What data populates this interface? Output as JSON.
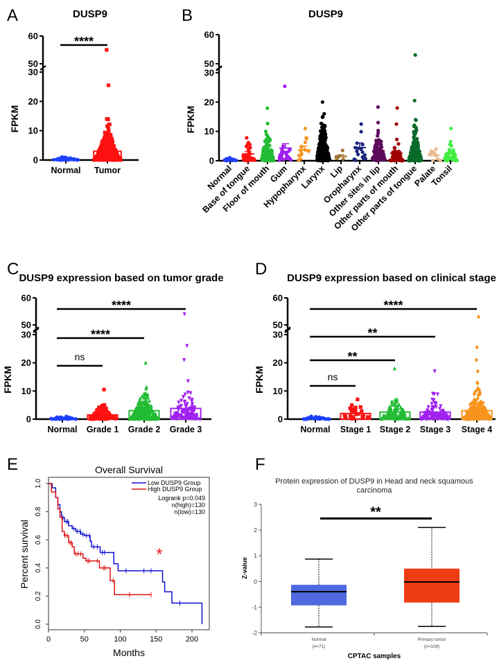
{
  "figure": {
    "panel_labels": [
      "A",
      "B",
      "C",
      "D",
      "E",
      "F"
    ]
  },
  "chart_data": [
    {
      "type": "scatter",
      "title": "DUSP9",
      "ylabel": "FPKM",
      "yticks": [
        0,
        10,
        20,
        30,
        50,
        60
      ],
      "axis_break": [
        30,
        50
      ],
      "categories": [
        "Normal",
        "Tumor"
      ],
      "groups": [
        {
          "color": "#1f3fff",
          "marker": "circle",
          "mean": 0.4,
          "max": 1.0,
          "outliers": []
        },
        {
          "color": "#ff1010",
          "marker": "square",
          "mean": 3.0,
          "max": 14,
          "outliers": [
            25.5,
            55
          ]
        }
      ],
      "significance": [
        {
          "from": 0,
          "to": 1,
          "label": "****"
        }
      ]
    },
    {
      "type": "scatter",
      "title": "DUSP9",
      "ylabel": "FPKM",
      "yticks": [
        0,
        10,
        20,
        30,
        50,
        60
      ],
      "axis_break": [
        30,
        50
      ],
      "categories": [
        "Normal",
        "Base of tongue",
        "Floor of mouth",
        "Gum",
        "Hypopharynx",
        "Larynx",
        "Lip",
        "Oropharynx",
        "Other sites in lip",
        "Other parts of mouth",
        "Other parts of tongue",
        "Palate",
        "Tonsil"
      ],
      "groups": [
        {
          "color": "#1f3fff",
          "marker": "circle",
          "mean": 0.5,
          "max": 1.0,
          "outliers": []
        },
        {
          "color": "#ff1010",
          "marker": "circle",
          "mean": 2.3,
          "max": 7.8,
          "outliers": []
        },
        {
          "color": "#22bb33",
          "marker": "circle",
          "mean": 3.5,
          "max": 10,
          "outliers": [
            12.7,
            17.9
          ]
        },
        {
          "color": "#a020f0",
          "marker": "circle",
          "mean": 4.3,
          "max": 5,
          "outliers": [
            25.4
          ]
        },
        {
          "color": "#f7941d",
          "marker": "circle",
          "mean": 3.7,
          "max": 7.8,
          "outliers": [
            11
          ]
        },
        {
          "color": "#000000",
          "marker": "circle",
          "mean": 4.5,
          "max": 20,
          "outliers": []
        },
        {
          "color": "#a07030",
          "marker": "circle",
          "mean": 1.5,
          "max": 3.5,
          "outliers": []
        },
        {
          "color": "#1a237e",
          "marker": "circle",
          "mean": 4.5,
          "max": 6,
          "outliers": [
            9.9,
            12.5
          ]
        },
        {
          "color": "#5b0a5b",
          "marker": "circle",
          "mean": 3.4,
          "max": 13,
          "outliers": [
            18.3
          ]
        },
        {
          "color": "#a00000",
          "marker": "circle",
          "mean": 2.5,
          "max": 12.5,
          "outliers": [
            18
          ]
        },
        {
          "color": "#0a6a2a",
          "marker": "circle",
          "mean": 3.0,
          "max": 14,
          "outliers": [
            20.5,
            53
          ]
        },
        {
          "color": "#e8b890",
          "marker": "circle",
          "mean": 1.8,
          "max": 4,
          "outliers": []
        },
        {
          "color": "#44ee44",
          "marker": "circle",
          "mean": 2.2,
          "max": 11,
          "outliers": []
        }
      ]
    },
    {
      "type": "scatter",
      "title": "DUSP9 expression based on tumor grade",
      "ylabel": "FPKM",
      "yticks": [
        0,
        10,
        20,
        30,
        50,
        60
      ],
      "axis_break": [
        30,
        50
      ],
      "categories": [
        "Normal",
        "Grade 1",
        "Grade 2",
        "Grade 3"
      ],
      "groups": [
        {
          "color": "#1f3fff",
          "marker": "circle",
          "mean": 0.4,
          "max": 1.0,
          "outliers": []
        },
        {
          "color": "#ff1010",
          "marker": "square",
          "mean": 1.5,
          "max": 10.5,
          "outliers": []
        },
        {
          "color": "#22bb33",
          "marker": "triangle",
          "mean": 3.0,
          "max": 20,
          "outliers": []
        },
        {
          "color": "#a020f0",
          "marker": "triangle-down",
          "mean": 3.8,
          "max": 13.5,
          "outliers": [
            21,
            26,
            54
          ]
        }
      ],
      "significance": [
        {
          "from": 0,
          "to": 3,
          "label": "****"
        },
        {
          "from": 0,
          "to": 2,
          "label": "****"
        },
        {
          "from": 0,
          "to": 1,
          "label": "ns"
        }
      ]
    },
    {
      "type": "scatter",
      "title": "DUSP9 expression based on clinical stage",
      "ylabel": "FPKM",
      "yticks": [
        0,
        10,
        20,
        30,
        50,
        60
      ],
      "axis_break": [
        30,
        50
      ],
      "categories": [
        "Normal",
        "Stage 1",
        "Stage 2",
        "Stage 3",
        "Stage 4"
      ],
      "groups": [
        {
          "color": "#1f3fff",
          "marker": "circle",
          "mean": 0.4,
          "max": 1.0,
          "outliers": []
        },
        {
          "color": "#ff1010",
          "marker": "square",
          "mean": 2.0,
          "max": 7,
          "outliers": []
        },
        {
          "color": "#22bb33",
          "marker": "triangle",
          "mean": 2.5,
          "max": 18,
          "outliers": []
        },
        {
          "color": "#a020f0",
          "marker": "triangle-down",
          "mean": 2.5,
          "max": 17,
          "outliers": []
        },
        {
          "color": "#f7941d",
          "marker": "diamond",
          "mean": 3.0,
          "max": 17,
          "outliers": [
            21,
            25.5,
            53
          ]
        }
      ],
      "significance": [
        {
          "from": 0,
          "to": 4,
          "label": "****"
        },
        {
          "from": 0,
          "to": 3,
          "label": "**"
        },
        {
          "from": 0,
          "to": 2,
          "label": "**"
        },
        {
          "from": 0,
          "to": 1,
          "label": "ns"
        }
      ]
    },
    {
      "type": "line",
      "title": "Overall Survival",
      "xlabel": "Months",
      "ylabel": "Percent survival",
      "xlim": [
        0,
        215
      ],
      "ylim": [
        0,
        1
      ],
      "xticks": [
        0,
        50,
        100,
        150,
        200
      ],
      "yticks": [
        "0.0",
        "0.2",
        "0.4",
        "0.6",
        "0.8",
        "1.0"
      ],
      "legend_position": "top-right",
      "series": [
        {
          "name": "Low DUSP9 Group",
          "color": "#1010d0",
          "steps": [
            [
              0,
              1
            ],
            [
              5,
              0.97
            ],
            [
              10,
              0.9
            ],
            [
              13,
              0.85
            ],
            [
              16,
              0.8
            ],
            [
              18,
              0.76
            ],
            [
              22,
              0.73
            ],
            [
              28,
              0.7
            ],
            [
              33,
              0.68
            ],
            [
              38,
              0.66
            ],
            [
              45,
              0.64
            ],
            [
              50,
              0.63
            ],
            [
              58,
              0.59
            ],
            [
              60,
              0.55
            ],
            [
              72,
              0.51
            ],
            [
              91,
              0.43
            ],
            [
              97,
              0.38
            ],
            [
              159,
              0.3
            ],
            [
              162,
              0.23
            ],
            [
              172,
              0.15
            ],
            [
              214,
              0.0
            ]
          ],
          "censored": [
            20,
            25,
            27,
            35,
            40,
            44,
            48,
            53,
            57,
            63,
            68,
            75,
            78,
            108,
            133,
            143,
            183
          ]
        },
        {
          "name": "High DUSP9 Group",
          "color": "#e01010",
          "steps": [
            [
              0,
              1
            ],
            [
              4,
              0.94
            ],
            [
              10,
              0.9
            ],
            [
              13,
              0.82
            ],
            [
              16,
              0.76
            ],
            [
              19,
              0.66
            ],
            [
              22,
              0.63
            ],
            [
              28,
              0.58
            ],
            [
              33,
              0.55
            ],
            [
              36,
              0.5
            ],
            [
              48,
              0.47
            ],
            [
              52,
              0.45
            ],
            [
              71,
              0.4
            ],
            [
              86,
              0.31
            ],
            [
              92,
              0.21
            ],
            [
              143,
              0.21
            ]
          ],
          "censored": [
            23,
            26,
            30,
            32,
            38,
            41,
            45,
            55,
            57,
            68,
            77,
            79,
            90,
            113,
            143
          ]
        }
      ],
      "annotations": [
        "Logrank p=0.049",
        "n(high)=130",
        "n(low)=130"
      ],
      "significance_label": "*"
    },
    {
      "type": "box",
      "title_lines": [
        "Protein expression of DUSP9 in Head and neck squamous",
        "carcinoma"
      ],
      "xlabel": "CPTAC samples",
      "ylabel": "Z-value",
      "ylim": [
        -2,
        3
      ],
      "yticks": [
        -2,
        -1,
        0,
        1,
        2,
        3
      ],
      "categories": [
        {
          "label": "Normal",
          "n_label": "(n=71)",
          "color": "#5068e0",
          "min": -1.77,
          "q1": -0.93,
          "median": -0.4,
          "q3": -0.13,
          "max": 0.87
        },
        {
          "label": "Primary tumor",
          "n_label": "(n=108)",
          "color": "#f03c14",
          "min": -1.75,
          "q1": -0.82,
          "median": -0.02,
          "q3": 0.5,
          "max": 2.1
        }
      ],
      "significance": {
        "label": "**",
        "level": 2.45
      }
    }
  ]
}
